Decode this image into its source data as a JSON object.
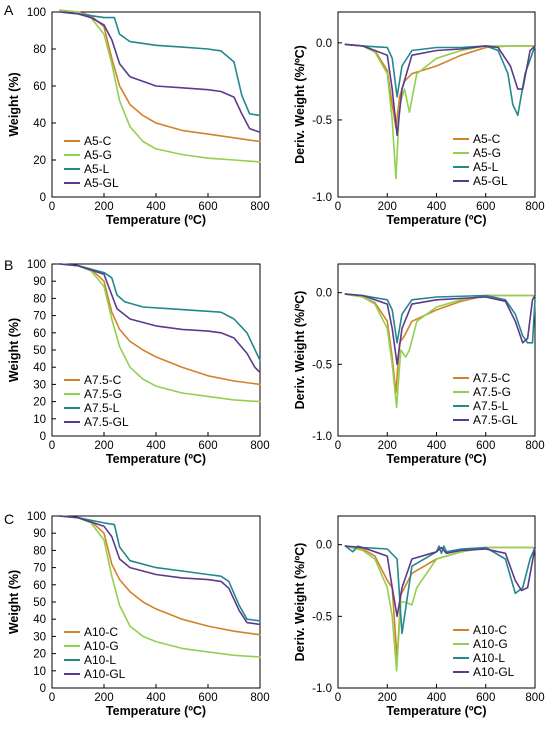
{
  "panel_letters": [
    "A",
    "B",
    "C"
  ],
  "colors": {
    "C": "#d4822a",
    "G": "#92d050",
    "L": "#23888d",
    "GL": "#5b3a8c"
  },
  "chart_data": [
    {
      "type": "line",
      "panel": "A",
      "xlabel": "Temperature (ºC)",
      "ylabel": "Weight (%)",
      "xlim": [
        0,
        800
      ],
      "ylim": [
        0,
        100
      ],
      "xticks": [
        0,
        200,
        400,
        600,
        800
      ],
      "yticks": [
        0,
        20,
        40,
        60,
        80,
        100
      ],
      "legend_position": "bottom-left",
      "series": [
        {
          "name": "A5-C",
          "color": "#d4822a",
          "x": [
            30,
            100,
            150,
            200,
            230,
            260,
            300,
            350,
            400,
            500,
            600,
            700,
            800
          ],
          "y": [
            101,
            100,
            98,
            92,
            75,
            60,
            50,
            44,
            40,
            36,
            34,
            32,
            30
          ]
        },
        {
          "name": "A5-G",
          "color": "#92d050",
          "x": [
            30,
            100,
            150,
            200,
            230,
            260,
            300,
            350,
            400,
            500,
            600,
            700,
            800
          ],
          "y": [
            101,
            100,
            97,
            88,
            72,
            52,
            38,
            30,
            26,
            23,
            21,
            20,
            19
          ]
        },
        {
          "name": "A5-L",
          "color": "#23888d",
          "x": [
            30,
            100,
            200,
            240,
            260,
            300,
            400,
            500,
            600,
            650,
            700,
            730,
            760,
            800
          ],
          "y": [
            100,
            99,
            97,
            97,
            88,
            84,
            82,
            81,
            80,
            79,
            73,
            55,
            45,
            44
          ]
        },
        {
          "name": "A5-GL",
          "color": "#5b3a8c",
          "x": [
            30,
            100,
            150,
            200,
            230,
            260,
            300,
            400,
            500,
            600,
            650,
            700,
            730,
            760,
            800
          ],
          "y": [
            100,
            99,
            97,
            93,
            85,
            72,
            65,
            60,
            59,
            58,
            57,
            54,
            45,
            37,
            35
          ]
        }
      ]
    },
    {
      "type": "line",
      "panel": "A",
      "xlabel": "Temperature (ºC)",
      "ylabel": "Deriv. Weight (%/ºC)",
      "xlim": [
        0,
        800
      ],
      "ylim": [
        -1.0,
        0.2
      ],
      "xticks": [
        0,
        200,
        400,
        600,
        800
      ],
      "yticks": [
        -1.0,
        -0.5,
        0.0
      ],
      "legend_position": "bottom-right",
      "series": [
        {
          "name": "A5-C",
          "color": "#d4822a",
          "x": [
            30,
            100,
            150,
            200,
            220,
            235,
            250,
            270,
            300,
            400,
            500,
            600,
            700,
            800
          ],
          "y": [
            -0.01,
            -0.02,
            -0.05,
            -0.18,
            -0.4,
            -0.55,
            -0.35,
            -0.25,
            -0.2,
            -0.15,
            -0.08,
            -0.03,
            -0.02,
            -0.02
          ]
        },
        {
          "name": "A5-G",
          "color": "#92d050",
          "x": [
            30,
            100,
            150,
            200,
            220,
            235,
            250,
            270,
            290,
            320,
            400,
            500,
            600,
            800
          ],
          "y": [
            -0.01,
            -0.02,
            -0.06,
            -0.2,
            -0.5,
            -0.88,
            -0.4,
            -0.3,
            -0.45,
            -0.2,
            -0.1,
            -0.05,
            -0.02,
            -0.02
          ]
        },
        {
          "name": "A5-L",
          "color": "#23888d",
          "x": [
            30,
            100,
            200,
            220,
            240,
            260,
            300,
            400,
            500,
            600,
            650,
            690,
            710,
            730,
            760,
            800
          ],
          "y": [
            -0.01,
            -0.02,
            -0.03,
            -0.1,
            -0.35,
            -0.15,
            -0.05,
            -0.03,
            -0.03,
            -0.02,
            -0.05,
            -0.2,
            -0.4,
            -0.47,
            -0.2,
            -0.02
          ]
        },
        {
          "name": "A5-GL",
          "color": "#5b3a8c",
          "x": [
            30,
            100,
            200,
            220,
            240,
            260,
            300,
            400,
            500,
            600,
            650,
            700,
            730,
            750,
            780,
            800
          ],
          "y": [
            -0.01,
            -0.02,
            -0.08,
            -0.3,
            -0.6,
            -0.3,
            -0.08,
            -0.05,
            -0.04,
            -0.02,
            -0.03,
            -0.15,
            -0.3,
            -0.3,
            -0.05,
            -0.02
          ]
        }
      ]
    },
    {
      "type": "line",
      "panel": "B",
      "xlabel": "Temperature (ºC)",
      "ylabel": "Weight (%)",
      "xlim": [
        0,
        800
      ],
      "ylim": [
        0,
        100
      ],
      "xticks": [
        0,
        200,
        400,
        600,
        800
      ],
      "yticks": [
        0,
        10,
        20,
        30,
        40,
        50,
        60,
        70,
        80,
        90,
        100
      ],
      "legend_position": "bottom-left",
      "series": [
        {
          "name": "A7.5-C",
          "color": "#d4822a",
          "x": [
            30,
            100,
            150,
            200,
            230,
            260,
            300,
            350,
            400,
            500,
            600,
            700,
            800
          ],
          "y": [
            100,
            99,
            97,
            90,
            72,
            62,
            55,
            50,
            46,
            40,
            35,
            32,
            30
          ]
        },
        {
          "name": "A7.5-G",
          "color": "#92d050",
          "x": [
            30,
            100,
            150,
            200,
            230,
            260,
            300,
            350,
            400,
            500,
            600,
            700,
            800
          ],
          "y": [
            100,
            99,
            96,
            87,
            68,
            52,
            40,
            33,
            29,
            25,
            23,
            21,
            20
          ]
        },
        {
          "name": "A7.5-L",
          "color": "#23888d",
          "x": [
            30,
            100,
            200,
            230,
            250,
            280,
            350,
            450,
            550,
            650,
            700,
            750,
            800
          ],
          "y": [
            100,
            99,
            95,
            92,
            82,
            78,
            75,
            74,
            73,
            72,
            68,
            60,
            44
          ]
        },
        {
          "name": "A7.5-GL",
          "color": "#5b3a8c",
          "x": [
            30,
            100,
            200,
            220,
            250,
            300,
            400,
            500,
            600,
            650,
            700,
            750,
            780,
            800
          ],
          "y": [
            100,
            99,
            94,
            86,
            74,
            68,
            64,
            62,
            61,
            60,
            57,
            48,
            40,
            37
          ]
        }
      ]
    },
    {
      "type": "line",
      "panel": "B",
      "xlabel": "Temperature (ºC)",
      "ylabel": "Deriv. Weight (%/ºC)",
      "xlim": [
        0,
        800
      ],
      "ylim": [
        -1.0,
        0.2
      ],
      "xticks": [
        0,
        200,
        400,
        600,
        800
      ],
      "yticks": [
        -1.0,
        -0.5,
        0.0
      ],
      "legend_position": "bottom-right",
      "series": [
        {
          "name": "A7.5-C",
          "color": "#d4822a",
          "x": [
            30,
            100,
            150,
            200,
            220,
            235,
            250,
            270,
            300,
            400,
            500,
            600,
            800
          ],
          "y": [
            -0.01,
            -0.03,
            -0.07,
            -0.2,
            -0.45,
            -0.7,
            -0.35,
            -0.3,
            -0.2,
            -0.12,
            -0.06,
            -0.02,
            -0.02
          ]
        },
        {
          "name": "A7.5-G",
          "color": "#92d050",
          "x": [
            30,
            100,
            150,
            200,
            220,
            238,
            255,
            275,
            290,
            320,
            400,
            500,
            600,
            800
          ],
          "y": [
            -0.01,
            -0.03,
            -0.08,
            -0.25,
            -0.5,
            -0.8,
            -0.4,
            -0.45,
            -0.4,
            -0.2,
            -0.1,
            -0.05,
            -0.02,
            -0.02
          ]
        },
        {
          "name": "A7.5-L",
          "color": "#23888d",
          "x": [
            30,
            100,
            200,
            220,
            240,
            260,
            300,
            400,
            600,
            680,
            720,
            750,
            770,
            790,
            800
          ],
          "y": [
            -0.01,
            -0.02,
            -0.05,
            -0.12,
            -0.35,
            -0.15,
            -0.05,
            -0.03,
            -0.02,
            -0.05,
            -0.15,
            -0.3,
            -0.35,
            -0.35,
            -0.05
          ]
        },
        {
          "name": "A7.5-GL",
          "color": "#5b3a8c",
          "x": [
            30,
            100,
            200,
            220,
            240,
            260,
            300,
            400,
            600,
            680,
            720,
            750,
            770,
            790,
            800
          ],
          "y": [
            -0.01,
            -0.02,
            -0.08,
            -0.25,
            -0.5,
            -0.25,
            -0.08,
            -0.05,
            -0.03,
            -0.06,
            -0.2,
            -0.35,
            -0.32,
            -0.05,
            -0.02
          ]
        }
      ]
    },
    {
      "type": "line",
      "panel": "C",
      "xlabel": "Temperature (ºC)",
      "ylabel": "Weight (%)",
      "xlim": [
        0,
        800
      ],
      "ylim": [
        0,
        100
      ],
      "xticks": [
        0,
        200,
        400,
        600,
        800
      ],
      "yticks": [
        0,
        10,
        20,
        30,
        40,
        50,
        60,
        70,
        80,
        90,
        100
      ],
      "legend_position": "bottom-left",
      "series": [
        {
          "name": "A10-C",
          "color": "#d4822a",
          "x": [
            30,
            100,
            150,
            200,
            230,
            260,
            300,
            350,
            400,
            500,
            600,
            700,
            800
          ],
          "y": [
            100,
            99,
            97,
            90,
            72,
            63,
            56,
            50,
            46,
            40,
            36,
            33,
            31
          ]
        },
        {
          "name": "A10-G",
          "color": "#92d050",
          "x": [
            30,
            100,
            150,
            200,
            230,
            260,
            300,
            350,
            400,
            500,
            600,
            700,
            800
          ],
          "y": [
            100,
            99,
            96,
            86,
            65,
            48,
            36,
            30,
            27,
            23,
            21,
            19,
            18
          ]
        },
        {
          "name": "A10-L",
          "color": "#23888d",
          "x": [
            30,
            100,
            200,
            240,
            260,
            300,
            400,
            500,
            600,
            650,
            680,
            720,
            750,
            800
          ],
          "y": [
            100,
            99,
            96,
            95,
            82,
            74,
            70,
            68,
            66,
            65,
            62,
            48,
            40,
            39
          ]
        },
        {
          "name": "A10-GL",
          "color": "#5b3a8c",
          "x": [
            30,
            100,
            200,
            230,
            260,
            300,
            400,
            500,
            600,
            650,
            680,
            720,
            750,
            800
          ],
          "y": [
            100,
            99,
            94,
            88,
            75,
            70,
            66,
            64,
            63,
            62,
            58,
            45,
            38,
            37
          ]
        }
      ]
    },
    {
      "type": "line",
      "panel": "C",
      "xlabel": "Temperature (ºC)",
      "ylabel": "Deriv. Weight (%/ºC)",
      "xlim": [
        0,
        800
      ],
      "ylim": [
        -1.0,
        0.2
      ],
      "xticks": [
        0,
        200,
        400,
        600,
        800
      ],
      "yticks": [
        -1.0,
        -0.5,
        0.0
      ],
      "legend_position": "bottom-right",
      "series": [
        {
          "name": "A10-C",
          "color": "#d4822a",
          "x": [
            30,
            100,
            150,
            200,
            220,
            240,
            255,
            270,
            300,
            400,
            500,
            600,
            800
          ],
          "y": [
            -0.01,
            -0.03,
            -0.08,
            -0.25,
            -0.3,
            -0.8,
            -0.35,
            -0.3,
            -0.2,
            -0.1,
            -0.05,
            -0.02,
            -0.02
          ]
        },
        {
          "name": "A10-G",
          "color": "#92d050",
          "x": [
            30,
            100,
            150,
            200,
            220,
            238,
            255,
            270,
            300,
            320,
            400,
            500,
            600,
            800
          ],
          "y": [
            -0.01,
            -0.04,
            -0.1,
            -0.3,
            -0.5,
            -0.88,
            -0.4,
            -0.4,
            -0.42,
            -0.3,
            -0.1,
            -0.05,
            -0.02,
            -0.02
          ]
        },
        {
          "name": "A10-L",
          "color": "#23888d",
          "x": [
            30,
            60,
            80,
            100,
            200,
            240,
            260,
            300,
            400,
            410,
            420,
            430,
            440,
            500,
            600,
            680,
            720,
            750,
            780,
            800
          ],
          "y": [
            -0.01,
            -0.05,
            -0.01,
            -0.02,
            -0.03,
            -0.1,
            -0.62,
            -0.15,
            -0.05,
            -0.01,
            -0.06,
            -0.01,
            -0.05,
            -0.03,
            -0.02,
            -0.1,
            -0.34,
            -0.3,
            -0.1,
            -0.02
          ]
        },
        {
          "name": "A10-GL",
          "color": "#5b3a8c",
          "x": [
            30,
            100,
            200,
            220,
            240,
            260,
            300,
            400,
            420,
            440,
            500,
            600,
            680,
            720,
            745,
            770,
            800
          ],
          "y": [
            -0.01,
            -0.02,
            -0.08,
            -0.3,
            -0.5,
            -0.3,
            -0.1,
            -0.05,
            -0.02,
            -0.06,
            -0.04,
            -0.03,
            -0.06,
            -0.25,
            -0.32,
            -0.3,
            -0.02
          ]
        }
      ]
    }
  ]
}
